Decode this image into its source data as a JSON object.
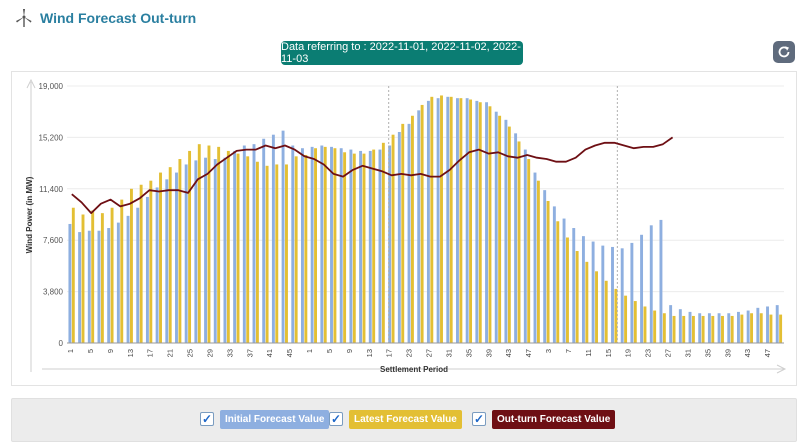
{
  "header": {
    "title": "Wind Forecast Out-turn",
    "icon": "wind-turbine-icon"
  },
  "badge": {
    "text": "Data referring to : 2022-11-01, 2022-11-02, 2022-11-03"
  },
  "refresh": {
    "icon": "refresh-icon"
  },
  "colors": {
    "initial": "#8eafe0",
    "latest": "#e3bf34",
    "outturn": "#6e0f14",
    "badge": "#0b7d73",
    "title": "#2a7fa0"
  },
  "legend": [
    {
      "label": "Initial Forecast Value",
      "bg": "#8eafe0",
      "fg": "#ffffff",
      "checked": true
    },
    {
      "label": "Latest Forecast Value",
      "bg": "#e3bf34",
      "fg": "#ffffff",
      "checked": true
    },
    {
      "label": "Out-turn Forecast Value",
      "bg": "#6e0f14",
      "fg": "#ffffff",
      "checked": true
    }
  ],
  "chart_data": {
    "type": "bar",
    "title": "",
    "xlabel": "Settlement Period",
    "ylabel": "Wind Power (in MW)",
    "ylim": [
      0,
      19000
    ],
    "yticks": [
      "0",
      "3,800",
      "7,600",
      "11,400",
      "15,200",
      "19,000"
    ],
    "xtick_labels": [
      "1",
      "5",
      "9",
      "13",
      "17",
      "21",
      "25",
      "29",
      "33",
      "37",
      "41",
      "45",
      "1",
      "5",
      "9",
      "13",
      "17",
      "21",
      "25",
      "29",
      "33",
      "37",
      "41",
      "45",
      "1",
      "5",
      "9",
      "13",
      "17",
      "21",
      "25",
      "29",
      "33",
      "37",
      "41",
      "45",
      "1",
      "5",
      "9",
      "13",
      "17",
      "21",
      "25",
      "29",
      "33",
      "37",
      "41",
      "45",
      "1",
      "5",
      "9",
      "13",
      "17",
      "21",
      "25",
      "29",
      "33",
      "37",
      "41",
      "45",
      "1",
      "5",
      "9",
      "13",
      "17",
      "21",
      "25",
      "29",
      "33",
      "37",
      "41",
      "45"
    ],
    "xtick_labels_visible": [
      "1",
      "5",
      "9",
      "13",
      "17",
      "21",
      "25",
      "29",
      "33",
      "37",
      "41",
      "45",
      "1",
      "5",
      "9",
      "13",
      "17",
      "23",
      "27",
      "31",
      "35",
      "39",
      "43",
      "47",
      "3",
      "7",
      "11",
      "15",
      "19",
      "23",
      "27",
      "31",
      "35",
      "39",
      "43",
      "47"
    ],
    "xtick_count": 144,
    "grid": true,
    "legend": "bottom",
    "series": [
      {
        "name": "Initial Forecast Value",
        "values": [
          8800,
          8200,
          8300,
          8300,
          8500,
          8900,
          9400,
          10000,
          10800,
          11500,
          12100,
          12600,
          13200,
          13500,
          13700,
          13600,
          13700,
          14200,
          14600,
          14700,
          15100,
          15400,
          15700,
          14600,
          14400,
          14500,
          14600,
          14500,
          14400,
          14300,
          14200,
          14200,
          14300,
          14600,
          15600,
          16200,
          17200,
          17900,
          18100,
          18200,
          18100,
          18100,
          17900,
          17800,
          17100,
          16500,
          15500,
          14300,
          12600,
          11300,
          10100,
          9200,
          8500,
          7900,
          7500,
          7200,
          7100,
          7000,
          7400,
          8000,
          8700,
          9100,
          2800,
          2500,
          2300,
          2200,
          2200,
          2200,
          2200,
          2300,
          2400,
          2600,
          2700,
          2800
        ]
      },
      {
        "name": "Latest Forecast Value",
        "values": [
          10000,
          9500,
          9800,
          9600,
          10000,
          10600,
          11400,
          11700,
          12000,
          12600,
          13000,
          13600,
          14200,
          14700,
          14600,
          14500,
          14200,
          14000,
          13800,
          13400,
          13100,
          13200,
          13200,
          13800,
          13900,
          14400,
          14500,
          14400,
          14100,
          14000,
          14000,
          14300,
          14800,
          15400,
          16200,
          16800,
          17600,
          18200,
          18300,
          18200,
          18100,
          18000,
          17800,
          17500,
          16800,
          16000,
          14900,
          13600,
          12000,
          10500,
          9000,
          7800,
          6800,
          6000,
          5300,
          4600,
          4000,
          3500,
          3100,
          2700,
          2400,
          2200,
          2000,
          2000,
          2000,
          2000,
          2000,
          2000,
          2000,
          2100,
          2200,
          2200,
          2100,
          2100
        ]
      },
      {
        "name": "Out-turn Forecast Value",
        "values": [
          11000,
          10400,
          9600,
          10300,
          10600,
          10100,
          10300,
          10700,
          11300,
          11200,
          11300,
          11300,
          11100,
          12100,
          12500,
          13200,
          13700,
          14200,
          14300,
          14300,
          14600,
          14400,
          14600,
          14300,
          13800,
          13600,
          13200,
          12500,
          12300,
          12800,
          13100,
          12900,
          12700,
          12400,
          12500,
          12400,
          12500,
          12300,
          12300,
          12800,
          13500,
          14100,
          14300,
          14000,
          14100,
          13800,
          13700,
          13900,
          13700,
          13600,
          13400,
          13400,
          13700,
          14300,
          14600,
          14800,
          14800,
          14600,
          14400,
          14500,
          14500,
          14700,
          15200
        ]
      }
    ],
    "bar_x_per_series": "bars shown for periods 1..144 at 2 per category",
    "marker_lines_at": [
      "1",
      "47"
    ]
  }
}
